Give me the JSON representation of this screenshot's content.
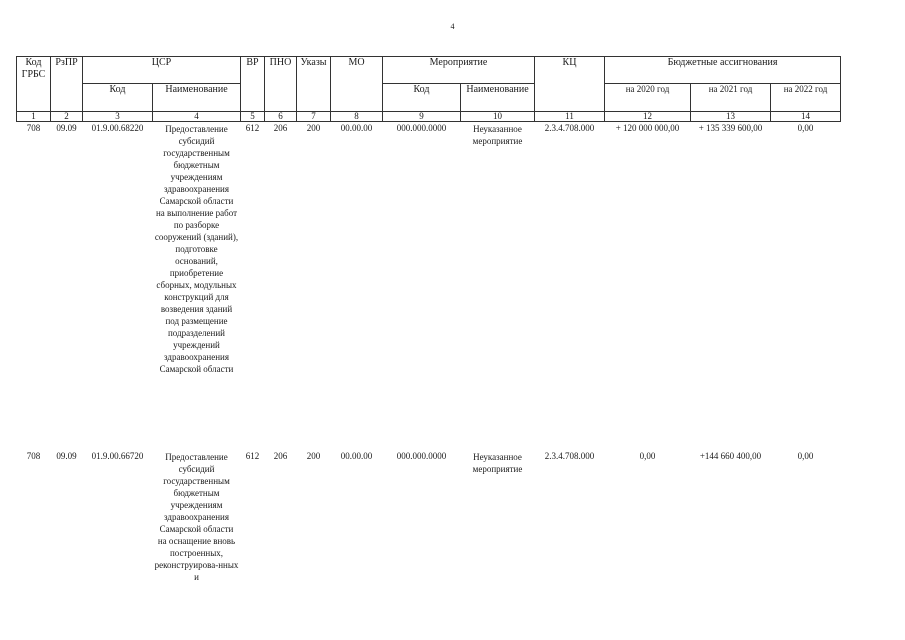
{
  "page_number": "4",
  "header": {
    "kod_grbs": "Код ГРБС",
    "rzpr": "РзПР",
    "csr": "ЦСР",
    "csr_kod": "Код",
    "csr_name": "Наименование",
    "vr": "ВР",
    "pno": "ПНО",
    "ukazy": "Указы",
    "mo": "МО",
    "meropriyatie": "Мероприятие",
    "mer_kod": "Код",
    "mer_name": "Наименование",
    "kc": "КЦ",
    "budget": "Бюджетные ассигнования",
    "y2020": "на 2020 год",
    "y2021": "на 2021 год",
    "y2022": "на 2022 год"
  },
  "column_numbers": [
    "1",
    "2",
    "3",
    "4",
    "5",
    "6",
    "7",
    "8",
    "9",
    "10",
    "11",
    "12",
    "13",
    "14"
  ],
  "rows": [
    {
      "grbs": "708",
      "rzpr": "09.09",
      "csr_kod": "01.9.00.68220",
      "csr_name": "Предоставление субсидий государственным бюджетным учреждениям здравоохранения Самарской области на выполнение работ по разборке сооружений (зданий), подготовке оснований, приобретение сборных, модульных конструкций для возведения зданий под размещение подразделений учреждений здравоохранения Самарской области",
      "vr": "612",
      "pno": "206",
      "ukazy": "200",
      "mo": "00.00.00",
      "mer_kod": "000.000.0000",
      "mer_name": "Неуказанное мероприятие",
      "kc": "2.3.4.708.000",
      "y2020": "+ 120 000 000,00",
      "y2021": "+ 135 339 600,00",
      "y2022": "0,00"
    },
    {
      "grbs": "708",
      "rzpr": "09.09",
      "csr_kod": "01.9.00.66720",
      "csr_name": "Предоставление субсидий государственным бюджетным учреждениям здравоохранения Самарской области на оснащение вновь построенных, реконструирова-нных и",
      "vr": "612",
      "pno": "206",
      "ukazy": "200",
      "mo": "00.00.00",
      "mer_kod": "000.000.0000",
      "mer_name": "Неуказанное мероприятие",
      "kc": "2.3.4.708.000",
      "y2020": "0,00",
      "y2021": "+144 660 400,00",
      "y2022": "0,00"
    }
  ]
}
